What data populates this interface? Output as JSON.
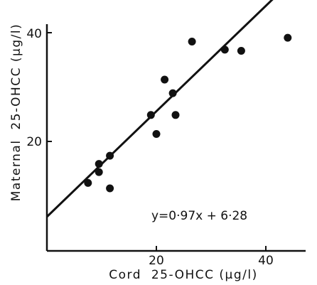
{
  "chart_data": {
    "type": "scatter",
    "title": "",
    "xlabel": "Cord  25-OHCC (µg/l)",
    "ylabel": "Maternal  25-OHCC (µg/l)",
    "xlim": [
      0,
      45
    ],
    "ylim": [
      0,
      42
    ],
    "xticks": [
      "20",
      "40"
    ],
    "yticks": [
      "20",
      "40"
    ],
    "grid": false,
    "equation": "y=0·97x + 6·28",
    "series": [
      {
        "points": [
          [
            7.5,
            12.5
          ],
          [
            9.5,
            16
          ],
          [
            9.5,
            14.5
          ],
          [
            11.5,
            17.5
          ],
          [
            11.5,
            11.5
          ],
          [
            19,
            25
          ],
          [
            20,
            21.5
          ],
          [
            21.5,
            31.5
          ],
          [
            23,
            29
          ],
          [
            23.5,
            25
          ],
          [
            26.5,
            38.5
          ],
          [
            32.5,
            37
          ],
          [
            35.5,
            36.8
          ],
          [
            44,
            39.2
          ]
        ]
      }
    ],
    "fit": {
      "slope": 0.97,
      "intercept": 6.28
    },
    "colors": {
      "ink": "#111111",
      "background": "#ffffff"
    }
  }
}
